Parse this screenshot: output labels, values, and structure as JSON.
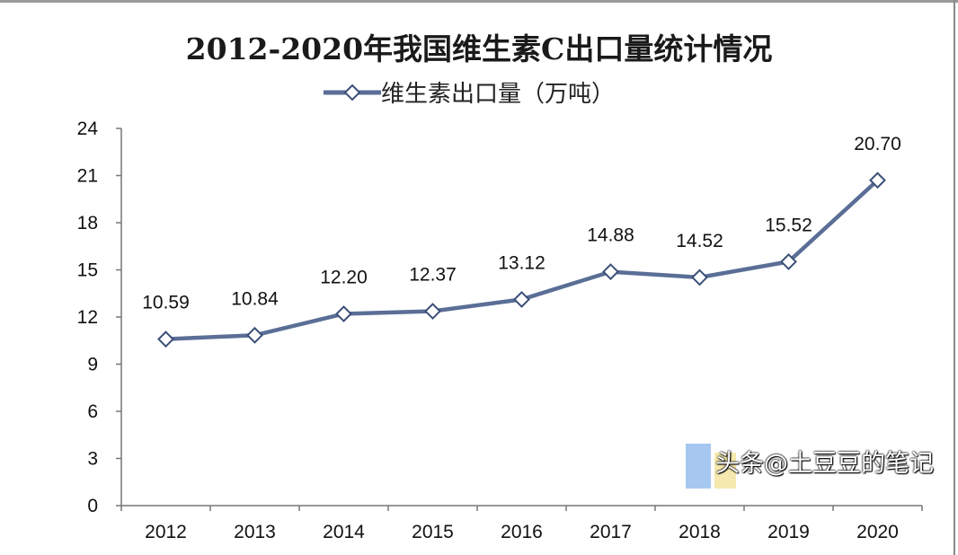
{
  "chart_data": {
    "type": "line",
    "title": "2012-2020年我国维生素C出口量统计情况",
    "categories": [
      "2012",
      "2013",
      "2014",
      "2015",
      "2016",
      "2017",
      "2018",
      "2019",
      "2020"
    ],
    "series": [
      {
        "name": "维生素出口量（万吨）",
        "values": [
          10.59,
          10.84,
          12.2,
          12.37,
          13.12,
          14.88,
          14.52,
          15.52,
          20.7
        ],
        "labels": [
          "10.59",
          "10.84",
          "12.20",
          "12.37",
          "13.12",
          "14.88",
          "14.52",
          "15.52",
          "20.70"
        ],
        "color": "#5a6e96",
        "marker": "diamond-open"
      }
    ],
    "yticks": [
      "0",
      "3",
      "6",
      "9",
      "12",
      "15",
      "18",
      "21",
      "24"
    ],
    "ylim": [
      0,
      24
    ],
    "grid": false,
    "legend_position": "top"
  },
  "watermark": "头条@土豆豆的笔记"
}
